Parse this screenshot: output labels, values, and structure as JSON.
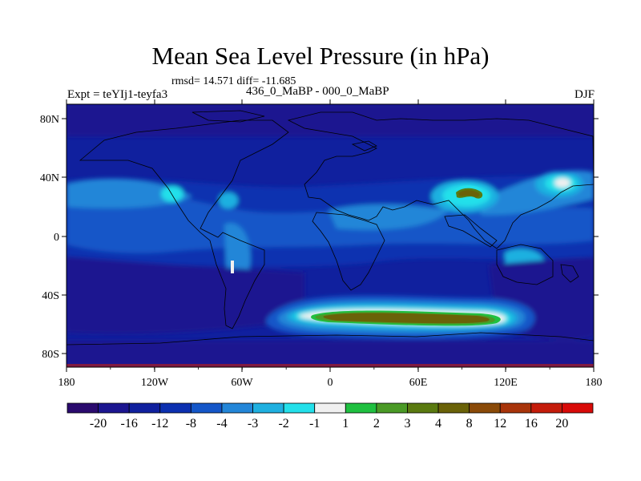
{
  "header": {
    "title": "Mean Sea Level Pressure (in hPa)",
    "stats": "rmsd= 14.571 diff= -11.685",
    "experiment": "Expt = teYIj1-teyfa3",
    "difference": "436_0_MaBP - 000_0_MaBP",
    "season": "DJF"
  },
  "axes": {
    "lon_ticks": [
      "180",
      "120W",
      "60W",
      "0",
      "60E",
      "120E",
      "180"
    ],
    "lat_ticks": [
      "80N",
      "40N",
      "0",
      "40S",
      "80S"
    ]
  },
  "colorbar": {
    "colors": [
      "#2a0a6e",
      "#1c1690",
      "#10209e",
      "#0c30b0",
      "#1456c8",
      "#2386d8",
      "#1fb0e0",
      "#23e0ea",
      "#f0f0f0",
      "#1fc040",
      "#4a9a26",
      "#5a7a10",
      "#6a6208",
      "#8a4a08",
      "#a8340a",
      "#c41c0a",
      "#d80a08"
    ],
    "labels": [
      "-20",
      "-16",
      "-12",
      "-8",
      "-4",
      "-3",
      "-2",
      "-1",
      "1",
      "2",
      "3",
      "4",
      "8",
      "12",
      "16",
      "20"
    ]
  }
}
